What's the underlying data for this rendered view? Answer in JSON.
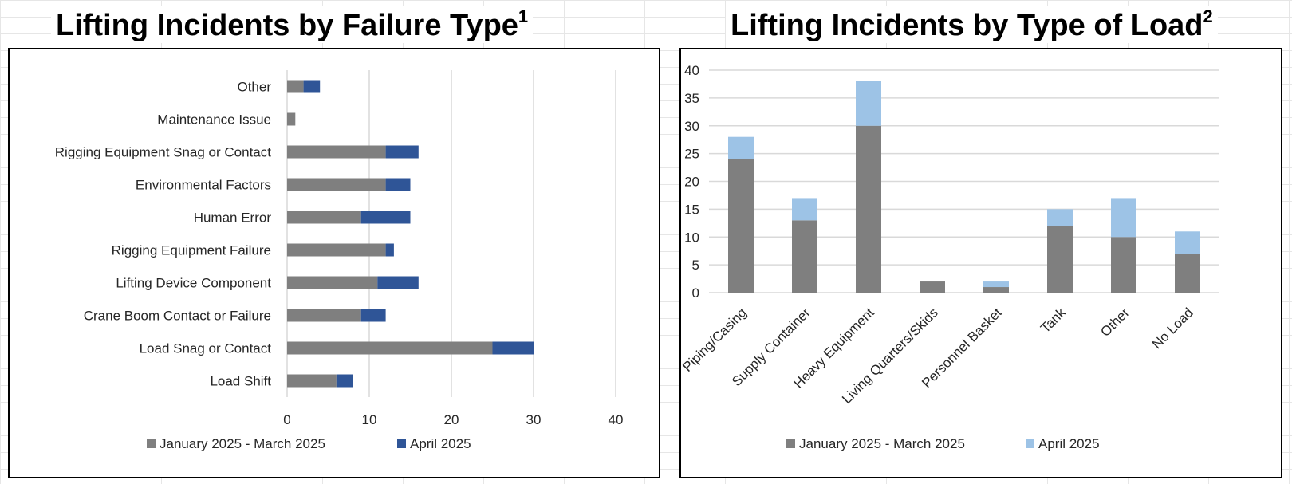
{
  "titles": {
    "left": "Lifting Incidents by Failure Type",
    "left_sup": "1",
    "right": "Lifting Incidents by Type of Load",
    "right_sup": "2"
  },
  "colors": {
    "gray": "#7f7f7f",
    "dark_blue": "#2f5597",
    "light_blue": "#9dc3e6",
    "grid": "#d9d9d9"
  },
  "chart_data": [
    {
      "type": "bar",
      "orientation": "horizontal",
      "stacked": true,
      "title": "Lifting Incidents by Failure Type",
      "categories": [
        "Other",
        "Maintenance Issue",
        "Rigging Equipment Snag or Contact",
        "Environmental Factors",
        "Human Error",
        "Rigging Equipment Failure",
        "Lifting Device Component",
        "Crane Boom Contact or Failure",
        "Load Snag or Contact",
        "Load Shift"
      ],
      "series": [
        {
          "name": "January 2025 - March 2025",
          "color": "#7f7f7f",
          "values": [
            2,
            1,
            12,
            12,
            9,
            12,
            11,
            9,
            25,
            6
          ]
        },
        {
          "name": "April 2025",
          "color": "#2f5597",
          "values": [
            2,
            0,
            4,
            3,
            6,
            1,
            5,
            3,
            5,
            2
          ]
        }
      ],
      "xlim": [
        0,
        40
      ],
      "xticks": [
        0,
        10,
        20,
        30,
        40
      ],
      "grid": true,
      "legend": "bottom"
    },
    {
      "type": "bar",
      "orientation": "vertical",
      "stacked": true,
      "title": "Lifting Incidents by Type of Load",
      "categories": [
        "Piping/Casing",
        "Supply Container",
        "Heavy Equipment",
        "Living Quarters/Skids",
        "Personnel Basket",
        "Tank",
        "Other",
        "No Load"
      ],
      "series": [
        {
          "name": "January 2025 - March 2025",
          "color": "#7f7f7f",
          "values": [
            24,
            13,
            30,
            2,
            1,
            12,
            10,
            7
          ]
        },
        {
          "name": "April 2025",
          "color": "#9dc3e6",
          "values": [
            4,
            4,
            8,
            0,
            1,
            3,
            7,
            4
          ]
        }
      ],
      "ylim": [
        0,
        40
      ],
      "yticks": [
        0,
        5,
        10,
        15,
        20,
        25,
        30,
        35,
        40
      ],
      "grid": true,
      "legend": "bottom"
    }
  ]
}
